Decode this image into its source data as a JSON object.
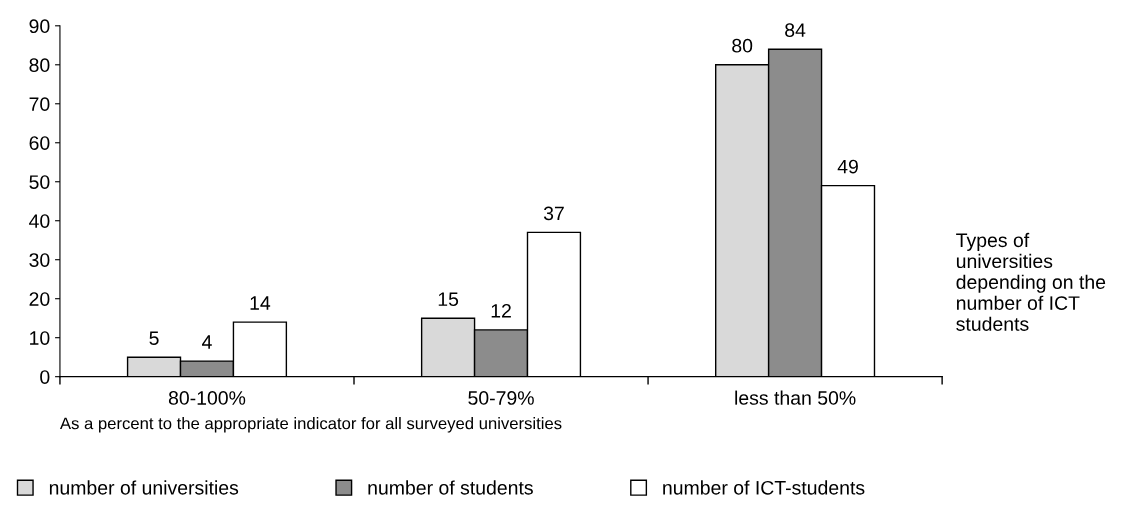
{
  "chart_data": {
    "type": "bar",
    "categories": [
      "80-100%",
      "50-79%",
      "less than 50%"
    ],
    "series": [
      {
        "name": "number of universities",
        "color": "#d9d9d9",
        "values": [
          5,
          15,
          80
        ]
      },
      {
        "name": "number of students",
        "color": "#8c8c8c",
        "values": [
          4,
          12,
          84
        ]
      },
      {
        "name": "number of ICT-students",
        "color": "#ffffff",
        "values": [
          14,
          37,
          49
        ]
      }
    ],
    "xlabel": "As a percent to the appropriate indicator for all surveyed universities",
    "annotations": [
      "Types of universities depending on the number of ICT students"
    ],
    "ylim": [
      0,
      90
    ],
    "yticks": [
      0,
      10,
      20,
      30,
      40,
      50,
      60,
      70,
      80,
      90
    ],
    "data_labels": true,
    "grid": false,
    "legend": "bottom"
  }
}
